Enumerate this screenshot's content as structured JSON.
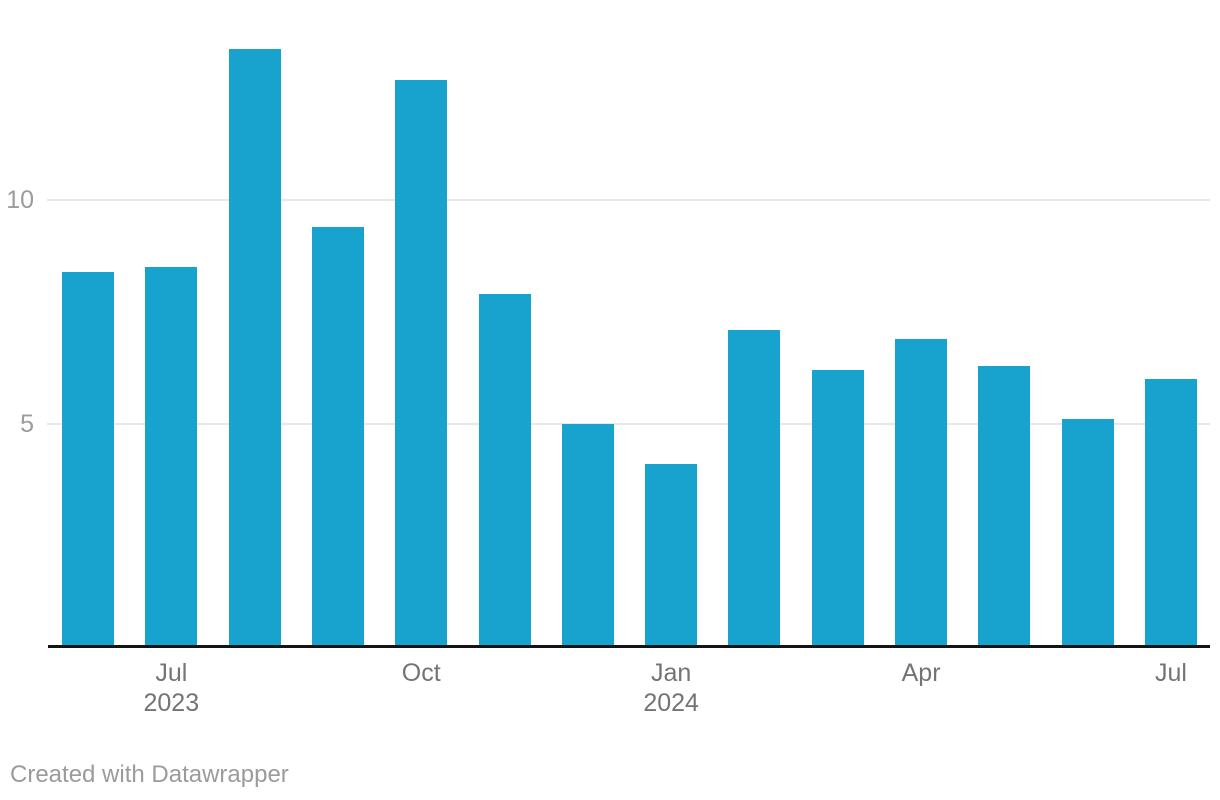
{
  "chart_data": {
    "type": "bar",
    "categories": [
      "Jun 2023",
      "Jul 2023",
      "Aug 2023",
      "Sep 2023",
      "Oct 2023",
      "Nov 2023",
      "Dec 2023",
      "Jan 2024",
      "Feb 2024",
      "Mar 2024",
      "Apr 2024",
      "May 2024",
      "Jun 2024",
      "Jul 2024"
    ],
    "values": [
      8.4,
      8.5,
      13.4,
      9.4,
      12.7,
      7.9,
      5.0,
      4.1,
      7.1,
      6.2,
      6.9,
      6.3,
      5.1,
      6.0
    ],
    "title": "",
    "xlabel": "",
    "ylabel": "",
    "ylim": [
      0,
      13.6
    ],
    "y_ticks": [
      5,
      10
    ],
    "x_tick_labels": [
      {
        "bar_index": 1,
        "line1": "Jul",
        "line2": "2023"
      },
      {
        "bar_index": 4,
        "line1": "Oct",
        "line2": ""
      },
      {
        "bar_index": 7,
        "line1": "Jan",
        "line2": "2024"
      },
      {
        "bar_index": 10,
        "line1": "Apr",
        "line2": ""
      },
      {
        "bar_index": 13,
        "line1": "Jul",
        "line2": ""
      }
    ],
    "grid": "horizontal-only",
    "legend": "none",
    "bar_color": "#18a2ce"
  },
  "colors": {
    "bar": "#18a2ce",
    "gridline": "#e8e8e8",
    "axis_line": "#141414",
    "y_tick_label": "#9c9c9c",
    "x_tick_label": "#747474",
    "footer_text": "#9b9b9b",
    "background": "#ffffff"
  },
  "footer": {
    "credit": "Created with Datawrapper"
  }
}
